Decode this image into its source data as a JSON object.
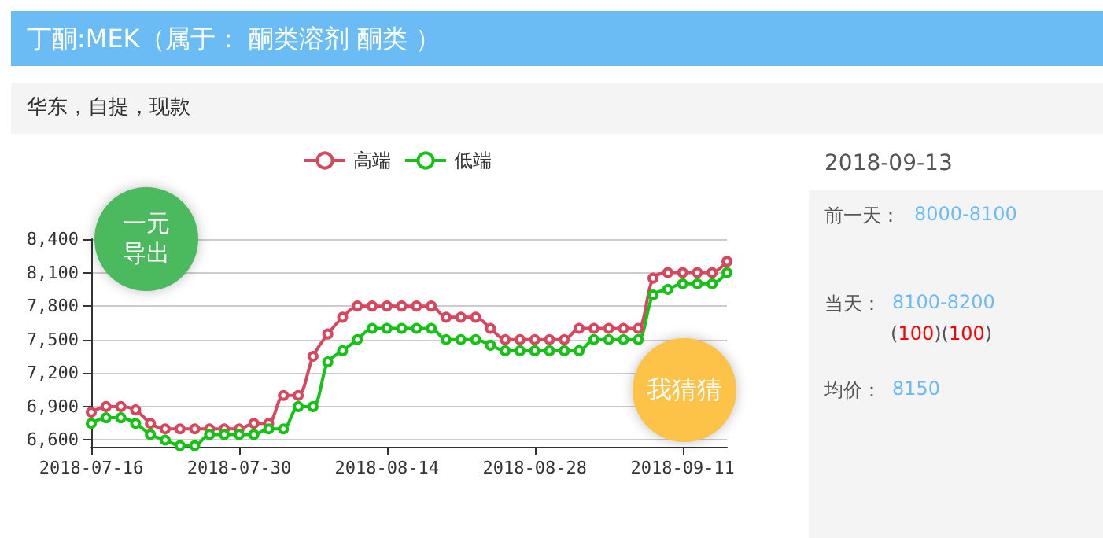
{
  "chart_data": {
    "type": "line",
    "title": "丁酮:MEK（属于： 酮类溶剂 酮类 ）",
    "subtitle": "华东，自提，现款",
    "categories": [
      "2018-07-16",
      null,
      null,
      null,
      null,
      null,
      null,
      null,
      null,
      null,
      "2018-07-30",
      null,
      null,
      null,
      null,
      null,
      null,
      null,
      null,
      null,
      "2018-08-14",
      null,
      null,
      null,
      null,
      null,
      null,
      null,
      null,
      null,
      "2018-08-28",
      null,
      null,
      null,
      null,
      null,
      null,
      null,
      null,
      null,
      "2018-09-11",
      null,
      null,
      null
    ],
    "series": [
      {
        "name": "高端",
        "color": "#d9475f",
        "values": [
          6850,
          6900,
          6900,
          6870,
          6750,
          6700,
          6700,
          6700,
          6700,
          6700,
          6700,
          6750,
          6750,
          7000,
          7000,
          7350,
          7550,
          7700,
          7800,
          7800,
          7800,
          7800,
          7800,
          7800,
          7700,
          7700,
          7700,
          7600,
          7500,
          7500,
          7500,
          7500,
          7500,
          7600,
          7600,
          7600,
          7600,
          7600,
          8050,
          8100,
          8100,
          8100,
          8100,
          8200
        ]
      },
      {
        "name": "低端",
        "color": "#16c216",
        "values": [
          6750,
          6800,
          6800,
          6750,
          6650,
          6600,
          6550,
          6550,
          6650,
          6650,
          6650,
          6650,
          6700,
          6700,
          6900,
          6900,
          7300,
          7400,
          7500,
          7600,
          7600,
          7600,
          7600,
          7600,
          7500,
          7500,
          7500,
          7450,
          7400,
          7400,
          7400,
          7400,
          7400,
          7400,
          7500,
          7500,
          7500,
          7500,
          7900,
          7950,
          8000,
          8000,
          8000,
          8100
        ]
      }
    ],
    "ylim": [
      6540,
      8400
    ],
    "yticks": [
      {
        "value": 6600,
        "label": "6,600"
      },
      {
        "value": 6900,
        "label": "6,900"
      },
      {
        "value": 7200,
        "label": "7,200"
      },
      {
        "value": 7500,
        "label": "7,500"
      },
      {
        "value": 7800,
        "label": "7,800"
      },
      {
        "value": 8100,
        "label": "8,100"
      },
      {
        "value": 8400,
        "label": "8,400"
      }
    ],
    "grid": "y",
    "legend": "top",
    "marker": "circle",
    "annotations": [
      "一元导出",
      "我猜猜",
      "2018-09-13",
      "前一天：",
      "8000-8100",
      "当天：",
      "8100-8200",
      "(100)(100)",
      "均价：",
      "8150"
    ]
  }
}
